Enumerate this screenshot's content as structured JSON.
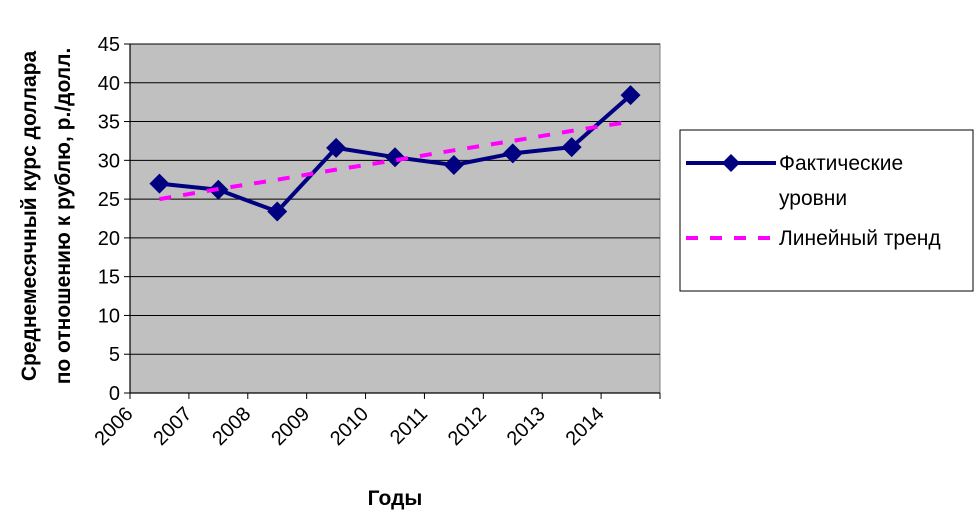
{
  "chart_data": {
    "type": "line",
    "xlabel": "Годы",
    "ylabel_lines": [
      "Среднемесячный курс доллара",
      "по отношению к рублю, р./долл."
    ],
    "categories": [
      "2006",
      "2007",
      "2008",
      "2009",
      "2010",
      "2011",
      "2012",
      "2013",
      "2014"
    ],
    "ylim": [
      0,
      45
    ],
    "ytick_step": 5,
    "grid": true,
    "legend_position": "right",
    "series": [
      {
        "name": "Фактические уровни",
        "name_lines": [
          "Фактические",
          "уровни"
        ],
        "style": "solid-diamond",
        "color": "#000080",
        "values": [
          27.0,
          26.2,
          23.4,
          31.6,
          30.4,
          29.4,
          30.9,
          31.7,
          38.4
        ]
      },
      {
        "name": "Линейный тренд",
        "name_lines": [
          "Линейный тренд"
        ],
        "style": "dashed",
        "color": "#ff00ff",
        "values": [
          25.0,
          26.3,
          27.5,
          28.8,
          30.0,
          31.3,
          32.5,
          33.8,
          35.0
        ]
      }
    ],
    "plot_background": "#c0c0c0"
  }
}
